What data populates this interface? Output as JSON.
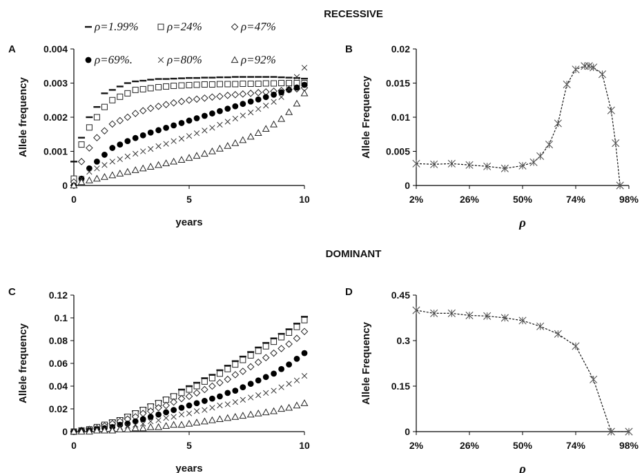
{
  "headings": {
    "recessive": "RECESSIVE",
    "dominant": "DOMINANT"
  },
  "chart_data": [
    {
      "panel": "A",
      "type": "scatter",
      "xlabel": "years",
      "ylabel": "Allele frequency",
      "xlim": [
        0,
        10
      ],
      "ylim": [
        0,
        0.004
      ],
      "xticks": [
        0,
        5,
        10
      ],
      "xtick_labels": [
        "0",
        "5",
        "10"
      ],
      "yticks": [
        0,
        0.001,
        0.002,
        0.003,
        0.004
      ],
      "ytick_labels": [
        "0",
        "0.001",
        "0.002",
        "0.003",
        "0.004"
      ],
      "legend": "top, two rows of three",
      "series": [
        {
          "name": "ρ=1.99%",
          "marker": "dash",
          "x": [
            0,
            0.33,
            0.67,
            1,
            1.33,
            1.67,
            2,
            2.33,
            2.67,
            3,
            3.33,
            3.67,
            4,
            4.33,
            4.67,
            5,
            5.33,
            5.67,
            6,
            6.33,
            6.67,
            7,
            7.33,
            7.67,
            8,
            8.33,
            8.67,
            9,
            9.33,
            9.67,
            10
          ],
          "y": [
            0.0007,
            0.0014,
            0.002,
            0.0023,
            0.0027,
            0.0028,
            0.0029,
            0.003,
            0.00305,
            0.00307,
            0.0031,
            0.00312,
            0.00312,
            0.00313,
            0.00314,
            0.00315,
            0.00315,
            0.00316,
            0.00316,
            0.00317,
            0.00317,
            0.00318,
            0.00318,
            0.00318,
            0.00318,
            0.00318,
            0.00318,
            0.00317,
            0.00316,
            0.00315,
            0.00313
          ]
        },
        {
          "name": "ρ=24%",
          "marker": "square",
          "x": [
            0,
            0.33,
            0.67,
            1,
            1.33,
            1.67,
            2,
            2.33,
            2.67,
            3,
            3.33,
            3.67,
            4,
            4.33,
            4.67,
            5,
            5.33,
            5.67,
            6,
            6.33,
            6.67,
            7,
            7.33,
            7.67,
            8,
            8.33,
            8.67,
            9,
            9.33,
            9.67,
            10
          ],
          "y": [
            0.0002,
            0.0012,
            0.0017,
            0.002,
            0.0023,
            0.0025,
            0.0026,
            0.0027,
            0.0028,
            0.00282,
            0.00285,
            0.00288,
            0.0029,
            0.00292,
            0.00293,
            0.00294,
            0.00295,
            0.00296,
            0.00296,
            0.00297,
            0.00297,
            0.00297,
            0.00298,
            0.00298,
            0.00298,
            0.00299,
            0.00299,
            0.003,
            0.003,
            0.003,
            0.003
          ]
        },
        {
          "name": "ρ=47%",
          "marker": "diamond",
          "x": [
            0,
            0.33,
            0.67,
            1,
            1.33,
            1.67,
            2,
            2.33,
            2.67,
            3,
            3.33,
            3.67,
            4,
            4.33,
            4.67,
            5,
            5.33,
            5.67,
            6,
            6.33,
            6.67,
            7,
            7.33,
            7.67,
            8,
            8.33,
            8.67,
            9,
            9.33,
            9.67,
            10
          ],
          "y": [
            0.0001,
            0.0007,
            0.0011,
            0.0014,
            0.0016,
            0.0018,
            0.0019,
            0.002,
            0.00211,
            0.00219,
            0.00226,
            0.00232,
            0.00237,
            0.00242,
            0.00246,
            0.0025,
            0.00253,
            0.00256,
            0.00259,
            0.00261,
            0.00264,
            0.00266,
            0.00268,
            0.0027,
            0.00272,
            0.00274,
            0.00276,
            0.00278,
            0.00281,
            0.00283,
            0.00286
          ]
        },
        {
          "name": "ρ=69%.",
          "marker": "filled-circle",
          "x": [
            0,
            0.33,
            0.67,
            1,
            1.33,
            1.67,
            2,
            2.33,
            2.67,
            3,
            3.33,
            3.67,
            4,
            4.33,
            4.67,
            5,
            5.33,
            5.67,
            6,
            6.33,
            6.67,
            7,
            7.33,
            7.67,
            8,
            8.33,
            8.67,
            9,
            9.33,
            9.67,
            10
          ],
          "y": [
            0,
            0.0002,
            0.0005,
            0.0007,
            0.0009,
            0.0011,
            0.0012,
            0.0013,
            0.00139,
            0.00147,
            0.00155,
            0.00162,
            0.00169,
            0.00176,
            0.00183,
            0.0019,
            0.00197,
            0.00204,
            0.00211,
            0.00218,
            0.00225,
            0.00232,
            0.00239,
            0.00246,
            0.00252,
            0.00259,
            0.00266,
            0.00273,
            0.0028,
            0.00287,
            0.00295
          ]
        },
        {
          "name": "ρ=80%",
          "marker": "cross",
          "x": [
            0,
            0.33,
            0.67,
            1,
            1.33,
            1.67,
            2,
            2.33,
            2.67,
            3,
            3.33,
            3.67,
            4,
            4.33,
            4.67,
            5,
            5.33,
            5.67,
            6,
            6.33,
            6.67,
            7,
            7.33,
            7.67,
            8,
            8.33,
            8.67,
            9,
            9.33,
            9.67,
            10
          ],
          "y": [
            0,
            0.0002,
            0.0004,
            0.0005,
            0.0006,
            0.0007,
            0.00077,
            0.00085,
            0.00093,
            0.001,
            0.00107,
            0.00115,
            0.00122,
            0.0013,
            0.00137,
            0.00145,
            0.00153,
            0.00161,
            0.00169,
            0.00178,
            0.00187,
            0.00196,
            0.00205,
            0.00214,
            0.00224,
            0.00234,
            0.00245,
            0.00259,
            0.00282,
            0.00318,
            0.00345
          ]
        },
        {
          "name": "ρ=92%",
          "marker": "triangle",
          "x": [
            0,
            0.33,
            0.67,
            1,
            1.33,
            1.67,
            2,
            2.33,
            2.67,
            3,
            3.33,
            3.67,
            4,
            4.33,
            4.67,
            5,
            5.33,
            5.67,
            6,
            6.33,
            6.67,
            7,
            7.33,
            7.67,
            8,
            8.33,
            8.67,
            9,
            9.33,
            9.67,
            10
          ],
          "y": [
            0,
            0.0001,
            0.00015,
            0.0002,
            0.00025,
            0.0003,
            0.00035,
            0.0004,
            0.00045,
            0.0005,
            0.00055,
            0.0006,
            0.00065,
            0.0007,
            0.00075,
            0.00081,
            0.00087,
            0.00093,
            0.001,
            0.00108,
            0.00116,
            0.00124,
            0.00133,
            0.00143,
            0.00154,
            0.00166,
            0.00179,
            0.00195,
            0.00215,
            0.0024,
            0.0027
          ]
        }
      ]
    },
    {
      "panel": "B",
      "type": "line",
      "xlabel": "ρ",
      "ylabel": "Allele Frequency",
      "xlim": [
        2,
        98
      ],
      "ylim": [
        0,
        0.02
      ],
      "xticks": [
        2,
        26,
        50,
        74,
        98
      ],
      "xtick_labels": [
        "2%",
        "26%",
        "50%",
        "74%",
        "98%"
      ],
      "yticks": [
        0,
        0.005,
        0.01,
        0.015,
        0.02
      ],
      "ytick_labels": [
        "0",
        "0.005",
        "0.01",
        "0.015",
        "0.02"
      ],
      "series": [
        {
          "marker": "asterisk",
          "line": "dashed",
          "x": [
            2,
            10,
            18,
            26,
            34,
            42,
            50,
            55,
            58,
            62,
            66,
            70,
            74,
            78,
            80,
            82,
            86,
            90,
            92,
            94
          ],
          "y": [
            0.0032,
            0.0031,
            0.0032,
            0.003,
            0.0028,
            0.0025,
            0.0029,
            0.0034,
            0.0043,
            0.006,
            0.0091,
            0.0148,
            0.017,
            0.0175,
            0.0175,
            0.0173,
            0.0163,
            0.011,
            0.0062,
            0
          ]
        }
      ]
    },
    {
      "panel": "C",
      "type": "scatter",
      "xlabel": "years",
      "ylabel": "Allele frequency",
      "xlim": [
        0,
        10
      ],
      "ylim": [
        0,
        0.12
      ],
      "xticks": [
        0,
        5,
        10
      ],
      "xtick_labels": [
        "0",
        "5",
        "10"
      ],
      "yticks": [
        0,
        0.02,
        0.04,
        0.06,
        0.08,
        0.1,
        0.12
      ],
      "ytick_labels": [
        "0",
        "0.02",
        "0.04",
        "0.06",
        "0.08",
        "0.1",
        "0.12"
      ],
      "series": [
        {
          "marker": "dash",
          "x": [
            0,
            0.33,
            0.67,
            1,
            1.33,
            1.67,
            2,
            2.33,
            2.67,
            3,
            3.33,
            3.67,
            4,
            4.33,
            4.67,
            5,
            5.33,
            5.67,
            6,
            6.33,
            6.67,
            7,
            7.33,
            7.67,
            8,
            8.33,
            8.67,
            9,
            9.33,
            9.67,
            10
          ],
          "y": [
            0,
            0.001,
            0.003,
            0.005,
            0.007,
            0.01,
            0.012,
            0.015,
            0.018,
            0.021,
            0.024,
            0.027,
            0.03,
            0.033,
            0.037,
            0.04,
            0.043,
            0.047,
            0.05,
            0.054,
            0.058,
            0.062,
            0.066,
            0.07,
            0.074,
            0.078,
            0.082,
            0.086,
            0.09,
            0.095,
            0.101
          ]
        },
        {
          "marker": "square",
          "x": [
            0,
            0.33,
            0.67,
            1,
            1.33,
            1.67,
            2,
            2.33,
            2.67,
            3,
            3.33,
            3.67,
            4,
            4.33,
            4.67,
            5,
            5.33,
            5.67,
            6,
            6.33,
            6.67,
            7,
            7.33,
            7.67,
            8,
            8.33,
            8.67,
            9,
            9.33,
            9.67,
            10
          ],
          "y": [
            0,
            0.001,
            0.002,
            0.004,
            0.006,
            0.008,
            0.01,
            0.013,
            0.016,
            0.019,
            0.022,
            0.025,
            0.028,
            0.031,
            0.034,
            0.037,
            0.04,
            0.044,
            0.047,
            0.051,
            0.055,
            0.059,
            0.063,
            0.067,
            0.071,
            0.075,
            0.079,
            0.083,
            0.087,
            0.092,
            0.098
          ]
        },
        {
          "marker": "diamond",
          "x": [
            0,
            0.33,
            0.67,
            1,
            1.33,
            1.67,
            2,
            2.33,
            2.67,
            3,
            3.33,
            3.67,
            4,
            4.33,
            4.67,
            5,
            5.33,
            5.67,
            6,
            6.33,
            6.67,
            7,
            7.33,
            7.67,
            8,
            8.33,
            8.67,
            9,
            9.33,
            9.67,
            10
          ],
          "y": [
            0,
            0.001,
            0.002,
            0.003,
            0.005,
            0.007,
            0.009,
            0.011,
            0.013,
            0.016,
            0.018,
            0.021,
            0.023,
            0.026,
            0.029,
            0.031,
            0.034,
            0.037,
            0.04,
            0.043,
            0.046,
            0.05,
            0.053,
            0.057,
            0.061,
            0.065,
            0.069,
            0.073,
            0.077,
            0.082,
            0.088
          ]
        },
        {
          "marker": "filled-circle",
          "x": [
            0,
            0.33,
            0.67,
            1,
            1.33,
            1.67,
            2,
            2.33,
            2.67,
            3,
            3.33,
            3.67,
            4,
            4.33,
            4.67,
            5,
            5.33,
            5.67,
            6,
            6.33,
            6.67,
            7,
            7.33,
            7.67,
            8,
            8.33,
            8.67,
            9,
            9.33,
            9.67,
            10
          ],
          "y": [
            0,
            0.001,
            0.001,
            0.002,
            0.003,
            0.004,
            0.006,
            0.007,
            0.009,
            0.011,
            0.013,
            0.015,
            0.017,
            0.019,
            0.021,
            0.023,
            0.025,
            0.027,
            0.029,
            0.031,
            0.034,
            0.036,
            0.039,
            0.042,
            0.045,
            0.048,
            0.051,
            0.055,
            0.059,
            0.064,
            0.069
          ]
        },
        {
          "marker": "cross",
          "x": [
            0,
            0.33,
            0.67,
            1,
            1.33,
            1.67,
            2,
            2.33,
            2.67,
            3,
            3.33,
            3.67,
            4,
            4.33,
            4.67,
            5,
            5.33,
            5.67,
            6,
            6.33,
            6.67,
            7,
            7.33,
            7.67,
            8,
            8.33,
            8.67,
            9,
            9.33,
            9.67,
            10
          ],
          "y": [
            0,
            0,
            0.001,
            0.001,
            0.002,
            0.003,
            0.004,
            0.005,
            0.006,
            0.007,
            0.009,
            0.01,
            0.012,
            0.013,
            0.015,
            0.016,
            0.018,
            0.019,
            0.021,
            0.023,
            0.024,
            0.026,
            0.028,
            0.03,
            0.032,
            0.034,
            0.036,
            0.039,
            0.042,
            0.045,
            0.049
          ]
        },
        {
          "marker": "triangle",
          "x": [
            0,
            0.33,
            0.67,
            1,
            1.33,
            1.67,
            2,
            2.33,
            2.67,
            3,
            3.33,
            3.67,
            4,
            4.33,
            4.67,
            5,
            5.33,
            5.67,
            6,
            6.33,
            6.67,
            7,
            7.33,
            7.67,
            8,
            8.33,
            8.67,
            9,
            9.33,
            9.67,
            10
          ],
          "y": [
            0,
            0,
            0,
            0.001,
            0.001,
            0.001,
            0.002,
            0.002,
            0.003,
            0.003,
            0.004,
            0.004,
            0.005,
            0.006,
            0.006,
            0.007,
            0.008,
            0.009,
            0.01,
            0.011,
            0.012,
            0.013,
            0.014,
            0.015,
            0.016,
            0.017,
            0.018,
            0.02,
            0.021,
            0.023,
            0.025
          ]
        }
      ]
    },
    {
      "panel": "D",
      "type": "line",
      "xlabel": "ρ",
      "ylabel": "Allele Frequency",
      "xlim": [
        2,
        98
      ],
      "ylim": [
        0,
        0.45
      ],
      "xticks": [
        2,
        26,
        50,
        74,
        98
      ],
      "xtick_labels": [
        "2%",
        "26%",
        "50%",
        "74%",
        "98%"
      ],
      "yticks": [
        0,
        0.15,
        0.3,
        0.45
      ],
      "ytick_labels": [
        "0",
        "0.15",
        "0.3",
        "0.45"
      ],
      "series": [
        {
          "marker": "asterisk",
          "line": "dashed",
          "x": [
            2,
            10,
            18,
            26,
            34,
            42,
            50,
            58,
            66,
            74,
            82,
            90,
            98
          ],
          "y": [
            0.4,
            0.39,
            0.39,
            0.383,
            0.381,
            0.375,
            0.366,
            0.347,
            0.322,
            0.282,
            0.172,
            0,
            0
          ]
        }
      ]
    }
  ]
}
